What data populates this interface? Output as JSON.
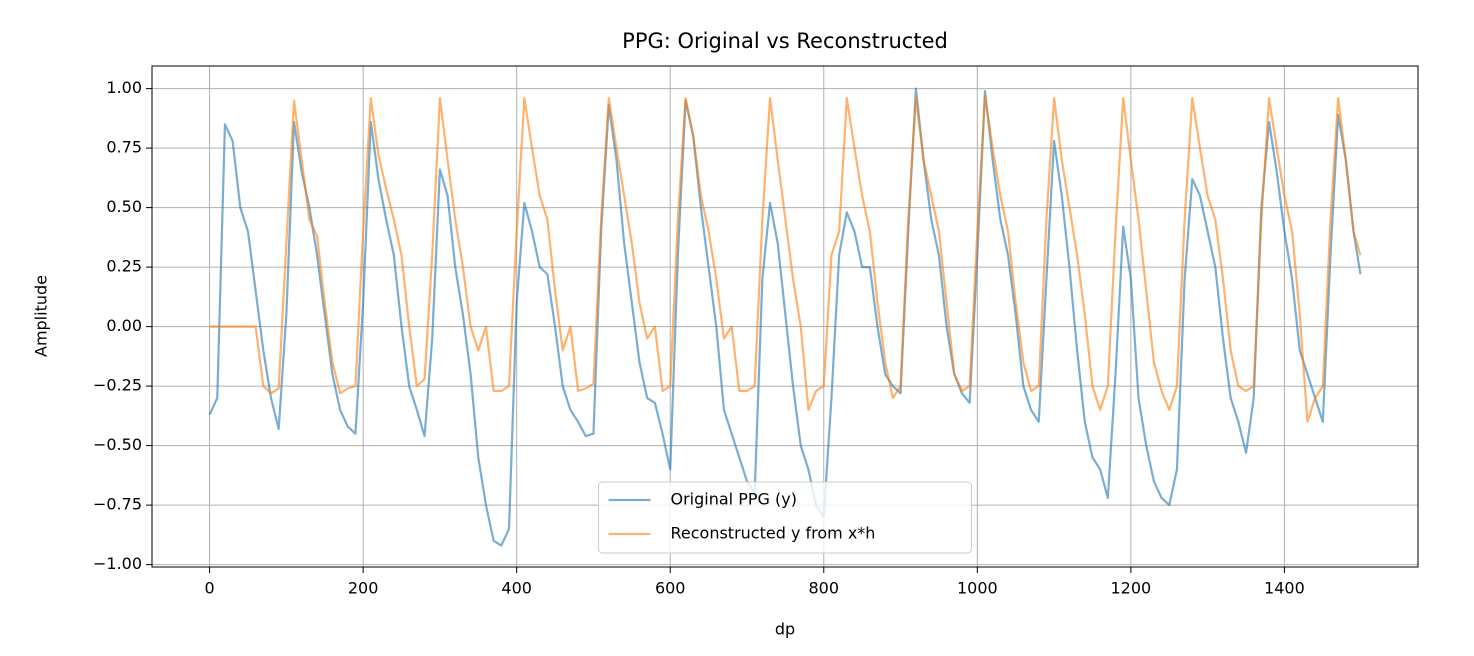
{
  "chart_data": {
    "type": "line",
    "title": "PPG: Original vs Reconstructed",
    "xlabel": "dp",
    "ylabel": "Amplitude",
    "x": [
      0,
      10,
      20,
      30,
      40,
      50,
      60,
      70,
      80,
      90,
      100,
      110,
      120,
      130,
      140,
      150,
      160,
      170,
      180,
      190,
      200,
      210,
      220,
      230,
      240,
      250,
      260,
      270,
      280,
      290,
      300,
      310,
      320,
      330,
      340,
      350,
      360,
      370,
      380,
      390,
      400,
      410,
      420,
      430,
      440,
      450,
      460,
      470,
      480,
      490,
      500,
      510,
      520,
      530,
      540,
      550,
      560,
      570,
      580,
      590,
      600,
      610,
      620,
      630,
      640,
      650,
      660,
      670,
      680,
      690,
      700,
      710,
      720,
      730,
      740,
      750,
      760,
      770,
      780,
      790,
      800,
      810,
      820,
      830,
      840,
      850,
      860,
      870,
      880,
      890,
      900,
      910,
      920,
      930,
      940,
      950,
      960,
      970,
      980,
      990,
      1000,
      1010,
      1020,
      1030,
      1040,
      1050,
      1060,
      1070,
      1080,
      1090,
      1100,
      1110,
      1120,
      1130,
      1140,
      1150,
      1160,
      1170,
      1180,
      1190,
      1200,
      1210,
      1220,
      1230,
      1240,
      1250,
      1260,
      1270,
      1280,
      1290,
      1300,
      1310,
      1320,
      1330,
      1340,
      1350,
      1360,
      1370,
      1380,
      1390,
      1400,
      1410,
      1420,
      1430,
      1440,
      1450,
      1460,
      1470,
      1480,
      1490,
      1499
    ],
    "series": [
      {
        "name": "Original PPG (y)",
        "color": "#1f77b4",
        "values": [
          -0.37,
          -0.3,
          0.85,
          0.78,
          0.5,
          0.4,
          0.15,
          -0.1,
          -0.3,
          -0.43,
          0.05,
          0.86,
          0.65,
          0.5,
          0.3,
          0.05,
          -0.2,
          -0.35,
          -0.42,
          -0.45,
          0.1,
          0.86,
          0.62,
          0.45,
          0.3,
          0.0,
          -0.25,
          -0.35,
          -0.46,
          -0.05,
          0.66,
          0.55,
          0.25,
          0.05,
          -0.2,
          -0.55,
          -0.75,
          -0.9,
          -0.92,
          -0.85,
          0.1,
          0.52,
          0.4,
          0.25,
          0.22,
          0.0,
          -0.25,
          -0.35,
          -0.4,
          -0.46,
          -0.45,
          0.4,
          0.93,
          0.7,
          0.35,
          0.1,
          -0.15,
          -0.3,
          -0.32,
          -0.45,
          -0.6,
          0.3,
          0.95,
          0.8,
          0.5,
          0.25,
          0.0,
          -0.35,
          -0.45,
          -0.55,
          -0.65,
          -0.7,
          0.2,
          0.52,
          0.35,
          0.05,
          -0.25,
          -0.5,
          -0.6,
          -0.75,
          -0.8,
          -0.3,
          0.3,
          0.48,
          0.4,
          0.25,
          0.25,
          0.0,
          -0.2,
          -0.25,
          -0.28,
          0.4,
          1.0,
          0.7,
          0.45,
          0.3,
          0.0,
          -0.2,
          -0.28,
          -0.32,
          0.3,
          0.99,
          0.7,
          0.45,
          0.3,
          0.05,
          -0.25,
          -0.35,
          -0.4,
          0.2,
          0.78,
          0.55,
          0.25,
          -0.1,
          -0.4,
          -0.55,
          -0.6,
          -0.72,
          -0.2,
          0.42,
          0.2,
          -0.3,
          -0.5,
          -0.65,
          -0.72,
          -0.75,
          -0.6,
          0.2,
          0.62,
          0.55,
          0.4,
          0.25,
          -0.05,
          -0.3,
          -0.4,
          -0.53,
          -0.3,
          0.5,
          0.86,
          0.65,
          0.4,
          0.2,
          -0.1,
          -0.2,
          -0.3,
          -0.4,
          0.3,
          0.89,
          0.7,
          0.4,
          0.22
        ]
      },
      {
        "name": "Reconstructed y from x*h",
        "color": "#ff7f0e",
        "values": [
          0,
          0,
          0,
          0,
          0,
          0,
          0,
          -0.25,
          -0.28,
          -0.26,
          0.35,
          0.95,
          0.7,
          0.45,
          0.38,
          0.1,
          -0.15,
          -0.28,
          -0.26,
          -0.25,
          0.4,
          0.96,
          0.72,
          0.58,
          0.45,
          0.3,
          0.0,
          -0.25,
          -0.22,
          0.3,
          0.96,
          0.7,
          0.45,
          0.25,
          0.0,
          -0.1,
          0.0,
          -0.27,
          -0.27,
          -0.25,
          0.4,
          0.96,
          0.75,
          0.55,
          0.45,
          0.15,
          -0.1,
          0.0,
          -0.27,
          -0.26,
          -0.24,
          0.45,
          0.96,
          0.75,
          0.55,
          0.35,
          0.1,
          -0.05,
          0.0,
          -0.27,
          -0.25,
          0.45,
          0.96,
          0.8,
          0.55,
          0.4,
          0.2,
          -0.05,
          0.0,
          -0.27,
          -0.27,
          -0.25,
          0.45,
          0.96,
          0.7,
          0.45,
          0.2,
          0.0,
          -0.35,
          -0.27,
          -0.25,
          0.3,
          0.4,
          0.96,
          0.75,
          0.55,
          0.4,
          0.1,
          -0.15,
          -0.3,
          -0.25,
          0.45,
          0.96,
          0.7,
          0.55,
          0.4,
          0.1,
          -0.2,
          -0.27,
          -0.25,
          0.4,
          0.97,
          0.75,
          0.55,
          0.4,
          0.1,
          -0.15,
          -0.27,
          -0.25,
          0.45,
          0.96,
          0.7,
          0.5,
          0.3,
          0.05,
          -0.25,
          -0.35,
          -0.25,
          0.4,
          0.96,
          0.7,
          0.45,
          0.15,
          -0.15,
          -0.27,
          -0.35,
          -0.25,
          0.45,
          0.96,
          0.75,
          0.55,
          0.45,
          0.2,
          -0.1,
          -0.25,
          -0.27,
          -0.25,
          0.45,
          0.96,
          0.75,
          0.55,
          0.4,
          0.05,
          -0.4,
          -0.3,
          -0.25,
          0.45,
          0.96,
          0.7,
          0.4,
          0.3
        ]
      }
    ],
    "opacity": 0.6,
    "xlim": [
      -75,
      1574
    ],
    "xticks": [
      0,
      200,
      400,
      600,
      800,
      1000,
      1200,
      1400
    ],
    "ylim": [
      -1.01,
      1.095
    ],
    "yticks": [
      {
        "value": -1,
        "label": "−1.00"
      },
      {
        "value": -0.75,
        "label": "−0.75"
      },
      {
        "value": -0.5,
        "label": "−0.50"
      },
      {
        "value": -0.25,
        "label": "−0.25"
      },
      {
        "value": 0,
        "label": "0.00"
      },
      {
        "value": 0.25,
        "label": "0.25"
      },
      {
        "value": 0.5,
        "label": "0.50"
      },
      {
        "value": 0.75,
        "label": "0.75"
      },
      {
        "value": 1,
        "label": "1.00"
      }
    ],
    "grid": true,
    "legend": "lower center"
  }
}
